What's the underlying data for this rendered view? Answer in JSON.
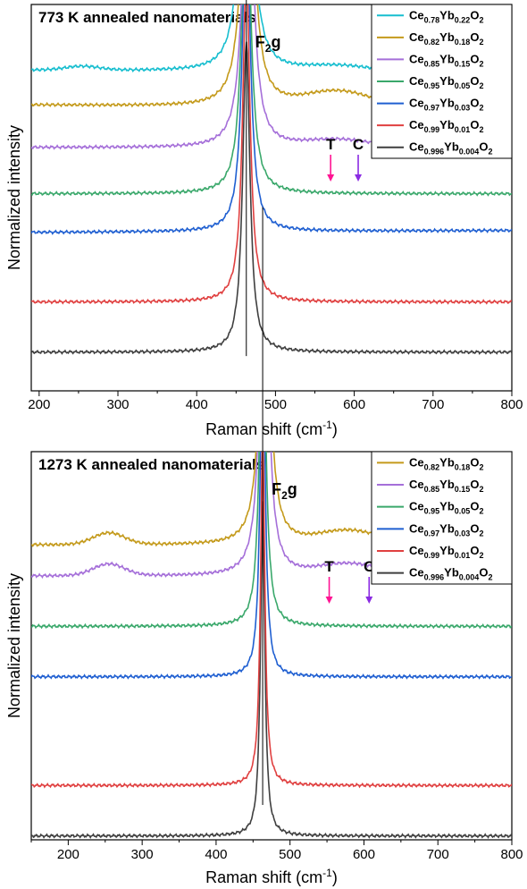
{
  "chart_data": [
    {
      "type": "line",
      "title": "773 K annealed nanomaterials",
      "xlabel": "Raman shift (cm",
      "xlabel_sup": "-1",
      "xlabel_end": ")",
      "ylabel": "Normalized intensity",
      "xlim": [
        190,
        800
      ],
      "xticks": [
        200,
        300,
        400,
        500,
        600,
        700,
        800
      ],
      "peak_label": {
        "main": "F",
        "sub": "2",
        "end": "g"
      },
      "markers": [
        {
          "label": "T",
          "x": 570,
          "color": "#ff1493"
        },
        {
          "label": "C",
          "x": 605,
          "color": "#8a2be2"
        }
      ],
      "legend_position": "top-right",
      "series": [
        {
          "legend": [
            [
              "Ce",
              "0.78"
            ],
            [
              "Yb",
              "0.22"
            ],
            [
              "O",
              "2"
            ]
          ],
          "color": "#17becf",
          "peak_x": 463,
          "offset": 0.83,
          "amp": 0.91,
          "width": 16,
          "baseline_slope": 0.008,
          "shoulder": 0.015,
          "hump": 0.01
        },
        {
          "legend": [
            [
              "Ce",
              "0.82"
            ],
            [
              "Yb",
              "0.18"
            ],
            [
              "O",
              "2"
            ]
          ],
          "color": "#c49a1b",
          "peak_x": 465,
          "offset": 0.74,
          "amp": 0.88,
          "width": 16,
          "baseline_slope": 0.01,
          "shoulder": 0.04,
          "hump": 0.0
        },
        {
          "legend": [
            [
              "Ce",
              "0.85"
            ],
            [
              "Yb",
              "0.15"
            ],
            [
              "O",
              "2"
            ]
          ],
          "color": "#a56fd9",
          "peak_x": 465,
          "offset": 0.63,
          "amp": 0.85,
          "width": 15,
          "baseline_slope": 0.002,
          "shoulder": 0.02,
          "hump": 0.0
        },
        {
          "legend": [
            [
              "Ce",
              "0.95"
            ],
            [
              "Yb",
              "0.05"
            ],
            [
              "O",
              "2"
            ]
          ],
          "color": "#3aa86b",
          "peak_x": 463,
          "offset": 0.51,
          "amp": 0.84,
          "width": 13,
          "baseline_slope": 0.0,
          "shoulder": 0.0,
          "hump": 0.0
        },
        {
          "legend": [
            [
              "Ce",
              "0.97"
            ],
            [
              "Yb",
              "0.03"
            ],
            [
              "O",
              "2"
            ]
          ],
          "color": "#1f5fd1",
          "peak_x": 463,
          "offset": 0.41,
          "amp": 0.84,
          "width": 12,
          "baseline_slope": -0.005,
          "shoulder": 0.0,
          "hump": 0.0
        },
        {
          "legend": [
            [
              "Ce",
              "0.99"
            ],
            [
              "Yb",
              "0.01"
            ],
            [
              "O",
              "2"
            ]
          ],
          "color": "#e04040",
          "peak_x": 463,
          "offset": 0.23,
          "amp": 0.86,
          "width": 11,
          "baseline_slope": 0.0,
          "shoulder": 0.0,
          "hump": 0.0
        },
        {
          "legend": [
            [
              "Ce",
              "0.996"
            ],
            [
              "Yb",
              "0.004"
            ],
            [
              "O",
              "2"
            ]
          ],
          "color": "#3f3f3f",
          "peak_x": 463,
          "offset": 0.1,
          "amp": 0.8,
          "width": 11,
          "baseline_slope": 0.0,
          "shoulder": 0.0,
          "hump": 0.0
        }
      ]
    },
    {
      "type": "line",
      "title": "1273 K annealed nanomaterials",
      "xlabel": "Raman shift (cm",
      "xlabel_sup": "-1",
      "xlabel_end": ")",
      "ylabel": "Normalized intensity",
      "xlim": [
        150,
        800
      ],
      "xticks": [
        200,
        300,
        400,
        500,
        600,
        700,
        800
      ],
      "peak_label": {
        "main": "F",
        "sub": "2",
        "end": "g"
      },
      "markers": [
        {
          "label": "T",
          "x": 553,
          "color": "#ff1493"
        },
        {
          "label": "C",
          "x": 607,
          "color": "#8a2be2"
        }
      ],
      "legend_position": "top-right",
      "series": [
        {
          "legend": [
            [
              "Ce",
              "0.82"
            ],
            [
              "Yb",
              "0.18"
            ],
            [
              "O",
              "2"
            ]
          ],
          "color": "#c49a1b",
          "peak_x": 466,
          "offset": 0.76,
          "amp": 0.86,
          "width": 15,
          "baseline_slope": 0.0,
          "shoulder": 0.035,
          "hump": 0.03
        },
        {
          "legend": [
            [
              "Ce",
              "0.85"
            ],
            [
              "Yb",
              "0.15"
            ],
            [
              "O",
              "2"
            ]
          ],
          "color": "#a56fd9",
          "peak_x": 465,
          "offset": 0.68,
          "amp": 0.88,
          "width": 14,
          "baseline_slope": 0.0,
          "shoulder": 0.03,
          "hump": 0.03
        },
        {
          "legend": [
            [
              "Ce",
              "0.95"
            ],
            [
              "Yb",
              "0.05"
            ],
            [
              "O",
              "2"
            ]
          ],
          "color": "#3aa86b",
          "peak_x": 463,
          "offset": 0.55,
          "amp": 0.87,
          "width": 10,
          "baseline_slope": 0.0,
          "shoulder": 0.0,
          "hump": 0.0
        },
        {
          "legend": [
            [
              "Ce",
              "0.97"
            ],
            [
              "Yb",
              "0.03"
            ],
            [
              "O",
              "2"
            ]
          ],
          "color": "#1f5fd1",
          "peak_x": 463,
          "offset": 0.42,
          "amp": 0.91,
          "width": 8,
          "baseline_slope": 0.0,
          "shoulder": 0.0,
          "hump": 0.0
        },
        {
          "legend": [
            [
              "Ce",
              "0.99"
            ],
            [
              "Yb",
              "0.01"
            ],
            [
              "O",
              "2"
            ]
          ],
          "color": "#e04040",
          "peak_x": 463,
          "offset": 0.14,
          "amp": 0.9,
          "width": 7,
          "baseline_slope": 0.0,
          "shoulder": 0.0,
          "hump": 0.0
        },
        {
          "legend": [
            [
              "Ce",
              "0.996"
            ],
            [
              "Yb",
              "0.004"
            ],
            [
              "O",
              "2"
            ]
          ],
          "color": "#3f3f3f",
          "peak_x": 463,
          "offset": 0.01,
          "amp": 0.86,
          "width": 7,
          "baseline_slope": 0.0,
          "shoulder": 0.0,
          "hump": 0.0
        }
      ]
    }
  ]
}
